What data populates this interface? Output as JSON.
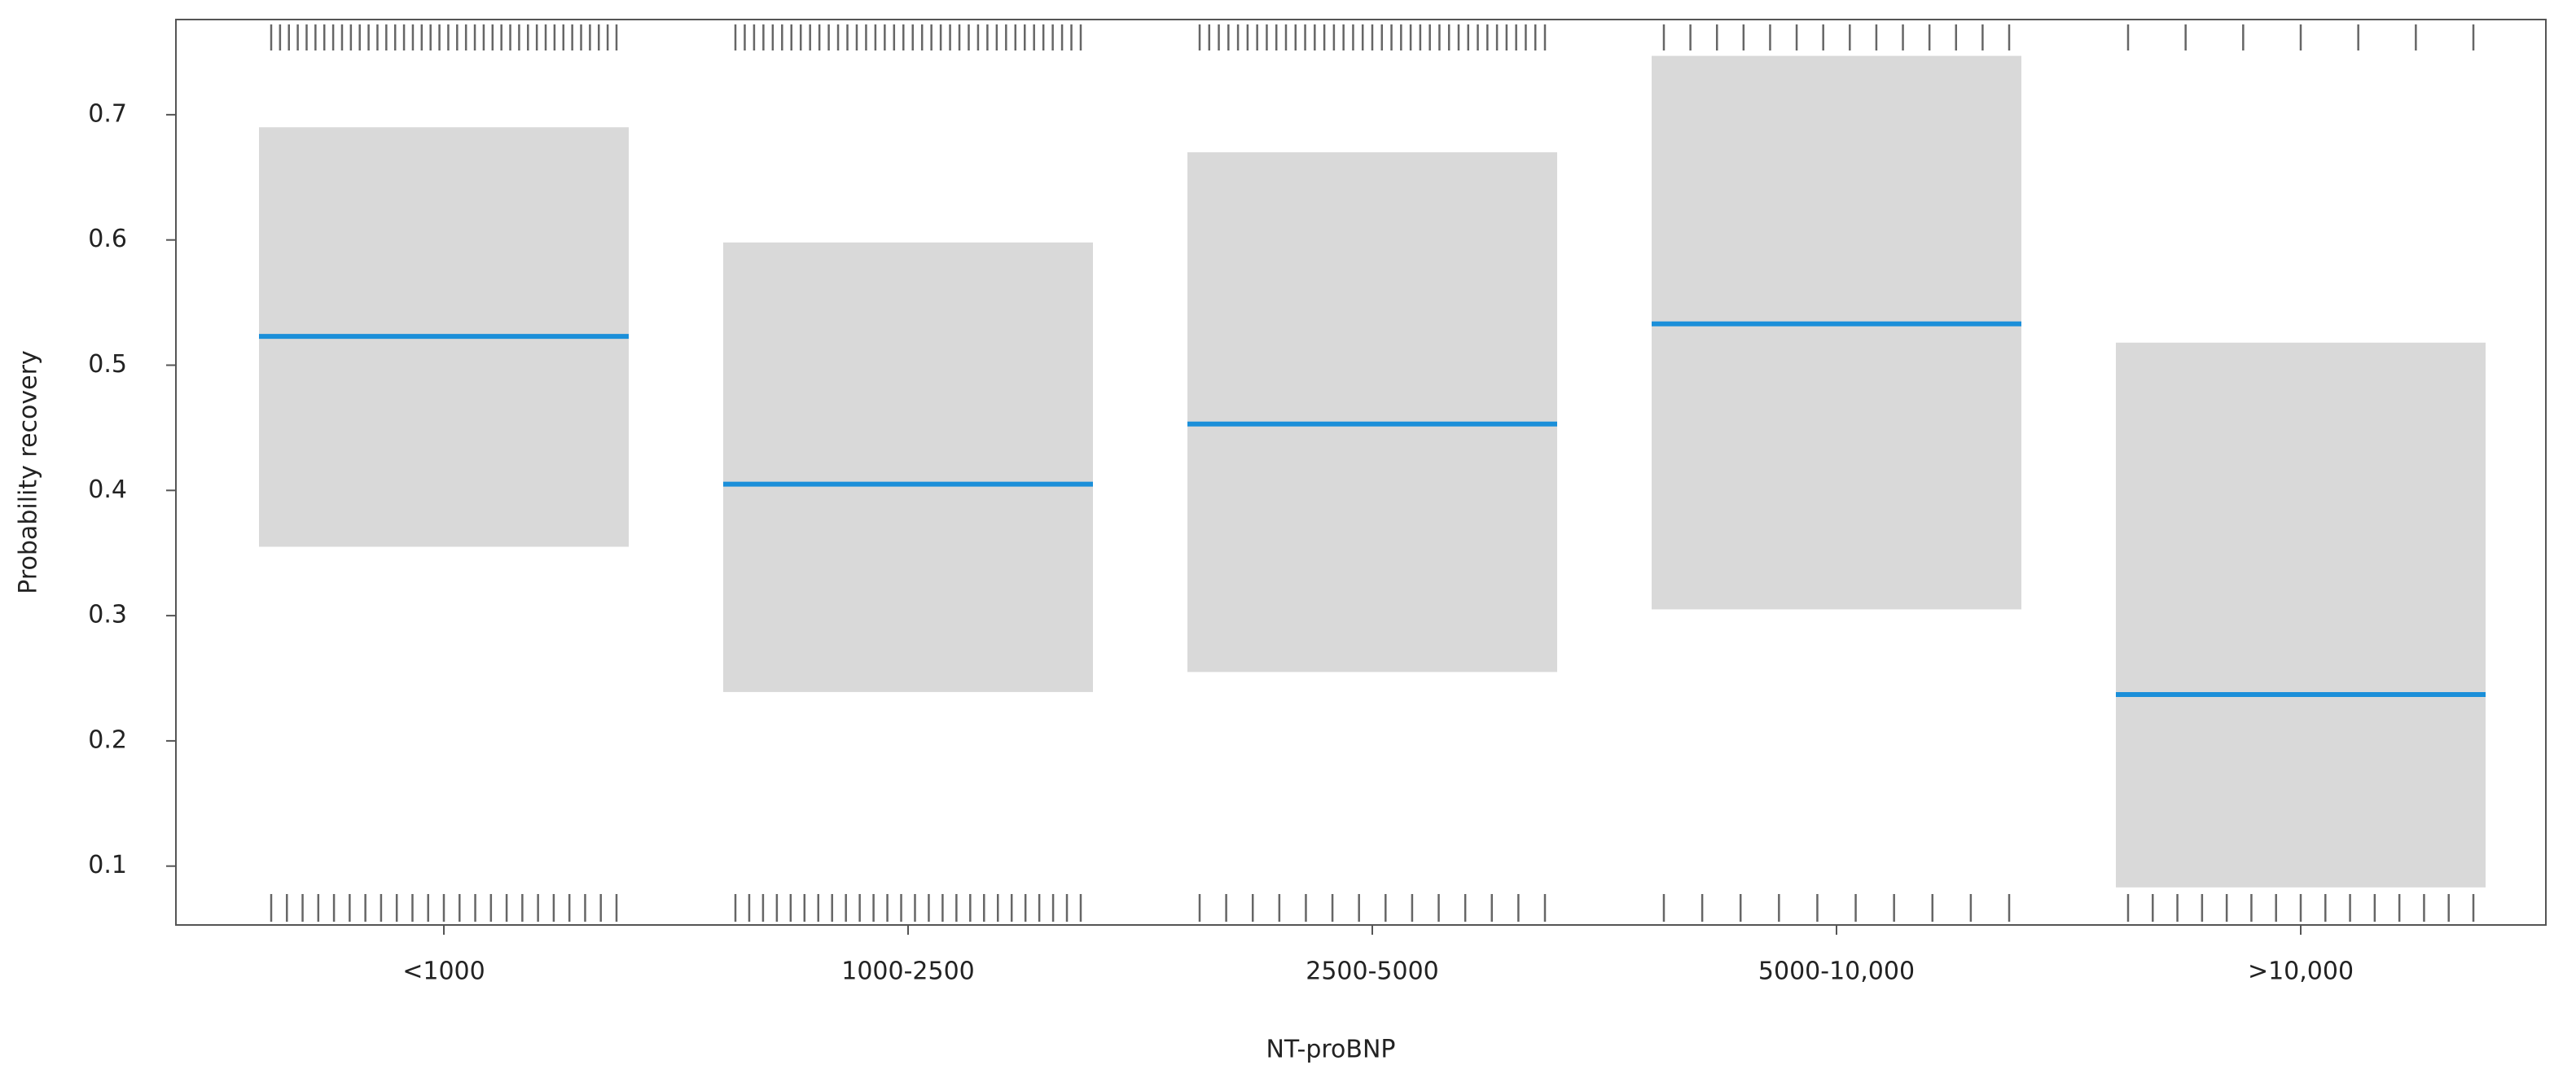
{
  "chart_data": {
    "type": "effect",
    "x_label": "NT-proBNP",
    "y_label": "Probability recovery",
    "categories": [
      "<1000",
      "1000-2500",
      "2500-5000",
      "5000-10,000",
      ">10,000"
    ],
    "values": [
      0.523,
      0.405,
      0.453,
      0.533,
      0.237
    ],
    "lower": [
      0.355,
      0.239,
      0.255,
      0.305,
      0.083
    ],
    "upper": [
      0.69,
      0.598,
      0.67,
      0.747,
      0.518
    ],
    "rug_top": [
      40,
      38,
      37,
      14,
      7
    ],
    "rug_bottom": [
      23,
      26,
      14,
      10,
      15
    ],
    "color": "#1b8fd9",
    "band_color": "#d9d9d9",
    "ylim": [
      0.053,
      0.776
    ],
    "yticks": [
      0.1,
      0.2,
      0.3,
      0.4,
      0.5,
      0.6,
      0.7
    ]
  }
}
